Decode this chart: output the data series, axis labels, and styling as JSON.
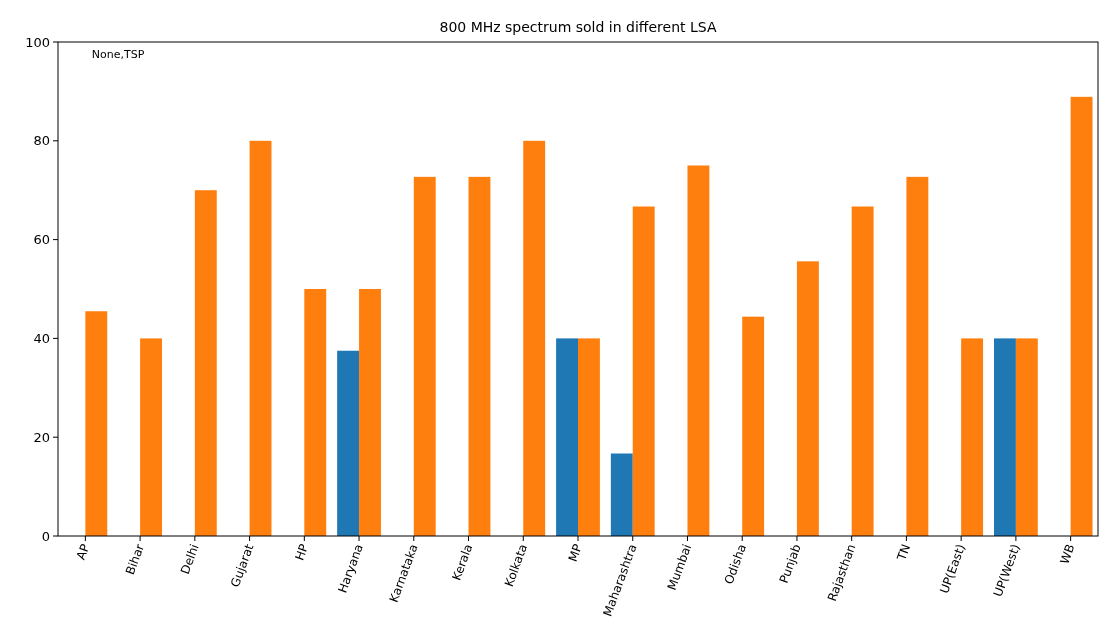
{
  "chart_data": {
    "type": "bar",
    "title": "800 MHz spectrum sold in different LSA",
    "annotations": [
      "None,TSP"
    ],
    "categories": [
      "AP",
      "Bihar",
      "Delhi",
      "Gujarat",
      "HP",
      "Haryana",
      "Karnataka",
      "Kerala",
      "Kolkata",
      "MP",
      "Maharashtra",
      "Mumbai",
      "Odisha",
      "Punjab",
      "Rajasthan",
      "TN",
      "UP(East)",
      "UP(West)",
      "WB"
    ],
    "series": [
      {
        "color": "#1f77b4",
        "values": [
          null,
          null,
          null,
          null,
          null,
          37.5,
          null,
          null,
          null,
          40,
          16.7,
          null,
          null,
          null,
          null,
          null,
          null,
          40,
          null
        ]
      },
      {
        "color": "#ff7f0e",
        "values": [
          45.5,
          40,
          70,
          80,
          50,
          50,
          72.7,
          72.7,
          80,
          40,
          66.7,
          75,
          44.4,
          55.6,
          66.7,
          72.7,
          40,
          40,
          88.9
        ]
      }
    ],
    "ylim": [
      0,
      100
    ],
    "yticks": [
      0,
      20,
      40,
      60,
      80,
      100
    ]
  }
}
